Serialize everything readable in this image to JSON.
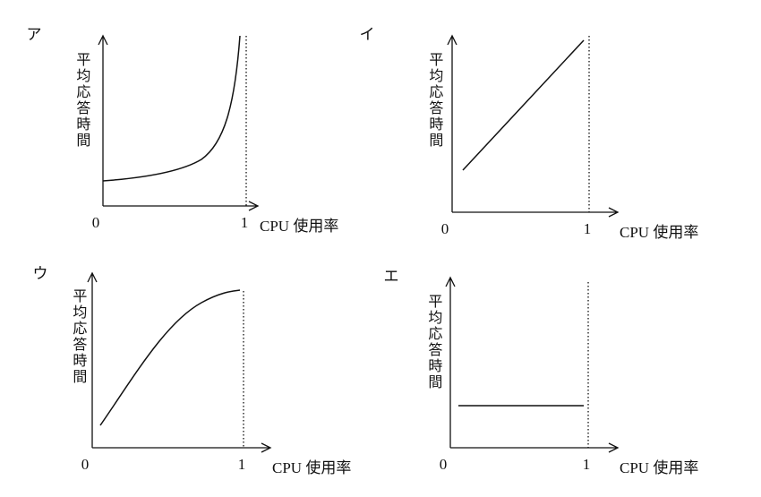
{
  "panels": [
    {
      "label": "ア",
      "y_label": "平均応答時間",
      "x_label": "CPU 使用率",
      "x_ticks": [
        "0",
        "1"
      ]
    },
    {
      "label": "イ",
      "y_label": "平均応答時間",
      "x_label": "CPU 使用率",
      "x_ticks": [
        "0",
        "1"
      ]
    },
    {
      "label": "ウ",
      "y_label": "平均応答時間",
      "x_label": "CPU 使用率",
      "x_ticks": [
        "0",
        "1"
      ]
    },
    {
      "label": "エ",
      "y_label": "平均応答時間",
      "x_label": "CPU 使用率",
      "x_ticks": [
        "0",
        "1"
      ]
    }
  ]
}
